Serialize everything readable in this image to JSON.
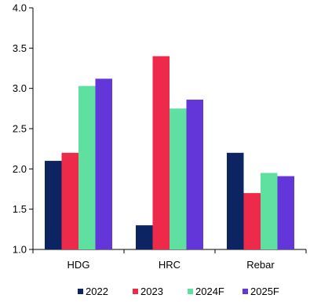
{
  "chart_data": {
    "type": "bar",
    "title": "",
    "xlabel": "",
    "ylabel": "",
    "categories": [
      "HDG",
      "HRC",
      "Rebar"
    ],
    "series": [
      {
        "name": "2022",
        "values": [
          2.1,
          1.3,
          2.2
        ]
      },
      {
        "name": "2023",
        "values": [
          2.2,
          3.4,
          1.7
        ]
      },
      {
        "name": "2024F",
        "values": [
          3.03,
          2.75,
          1.95
        ]
      },
      {
        "name": "2025F",
        "values": [
          3.12,
          2.86,
          1.91
        ]
      }
    ],
    "ylim": [
      1.0,
      4.0
    ],
    "yticks": [
      "1.0",
      "1.5",
      "2.0",
      "2.5",
      "3.0",
      "3.5",
      "4.0"
    ],
    "grid": false,
    "legend_position": "bottom",
    "colors": [
      "#0c2461",
      "#ee2a4a",
      "#5fe0a0",
      "#6236d9"
    ]
  }
}
